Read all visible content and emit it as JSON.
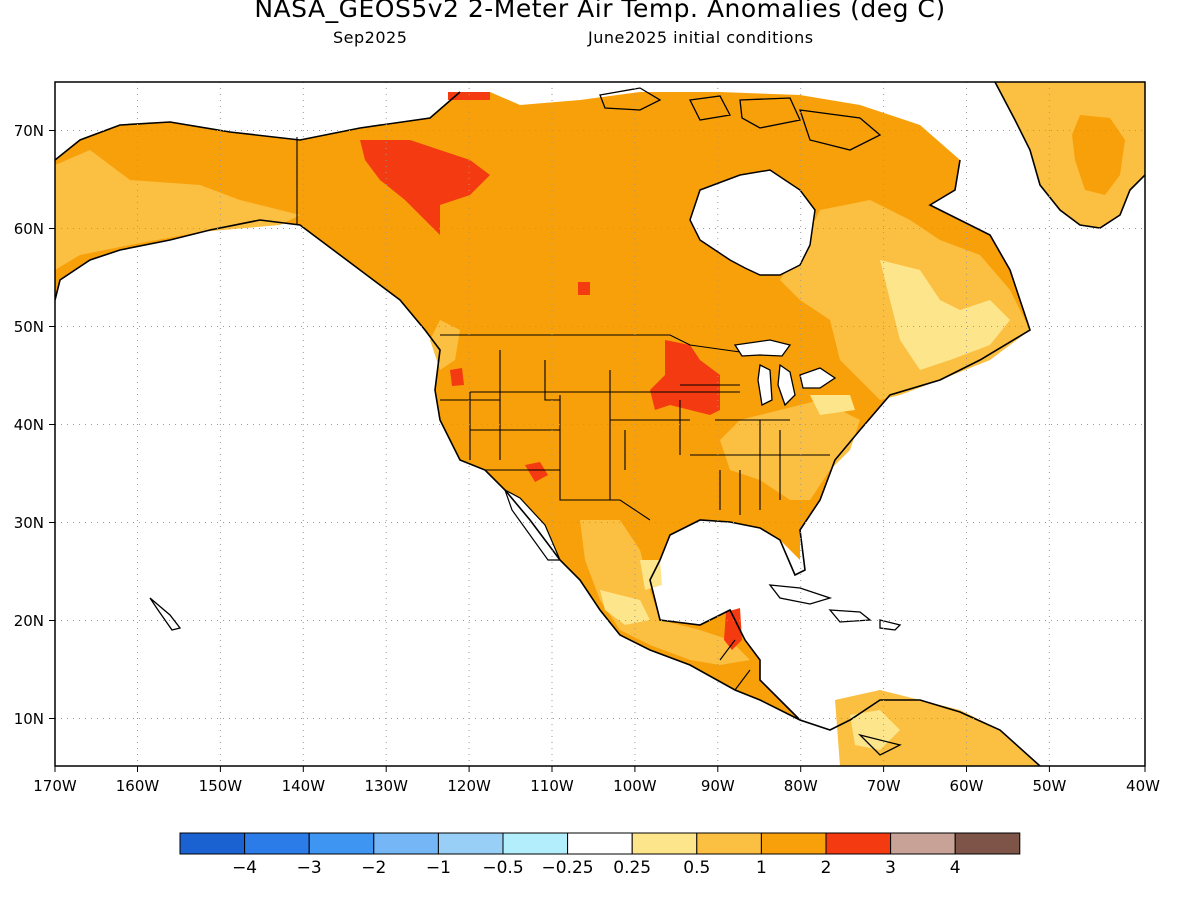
{
  "title": "NASA_GEOS5v2 2-Meter Air Temp. Anomalies (deg C)",
  "subtitle_left": "Sep2025",
  "subtitle_right": "June2025 initial conditions",
  "map": {
    "lon_ticks": [
      "170W",
      "160W",
      "150W",
      "140W",
      "130W",
      "120W",
      "110W",
      "100W",
      "90W",
      "80W",
      "70W",
      "60W",
      "50W",
      "40W"
    ],
    "lat_ticks": [
      "70N",
      "60N",
      "50N",
      "40N",
      "30N",
      "20N",
      "10N"
    ],
    "ocean_color": "#ffffff",
    "gridlines": "dotted"
  },
  "colorbar": {
    "colors": [
      "#1a62d1",
      "#2b7be8",
      "#3f95f2",
      "#75b7f6",
      "#98cff6",
      "#b2eefc",
      "#ffffff",
      "#fde58c",
      "#fbbf42",
      "#f8a00a",
      "#f33a10",
      "#c8a296",
      "#7d5447"
    ],
    "labels": [
      "−4",
      "−3",
      "−2",
      "−1",
      "−0.5",
      "−0.25",
      "0.25",
      "0.5",
      "1",
      "2",
      "3",
      "4"
    ]
  }
}
